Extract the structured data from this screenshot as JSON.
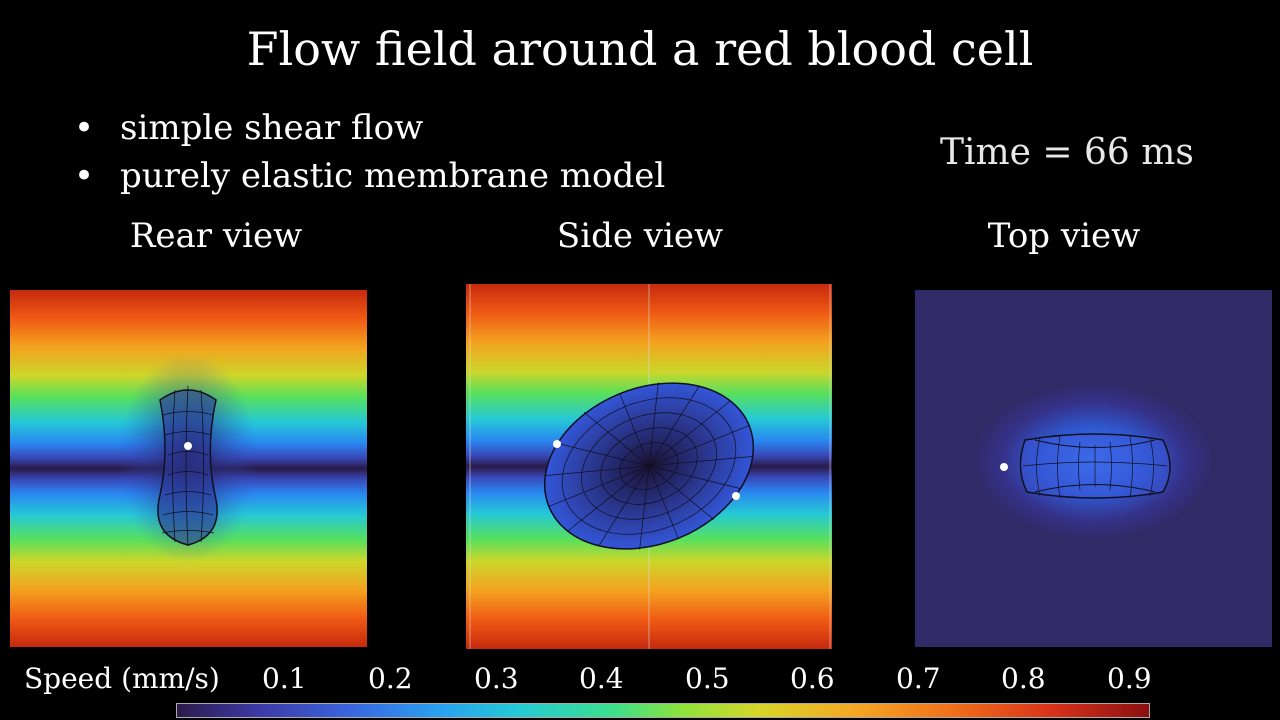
{
  "title": "Flow field around a red blood cell",
  "bullets": [
    "simple shear flow",
    "purely elastic membrane model"
  ],
  "time_label": "Time = 66 ms",
  "views": {
    "rear": "Rear view",
    "side": "Side view",
    "top": "Top view"
  },
  "colorbar": {
    "label": "Speed (mm/s)",
    "ticks": [
      "0.1",
      "0.2",
      "0.3",
      "0.4",
      "0.5",
      "0.6",
      "0.7",
      "0.8",
      "0.9"
    ]
  }
}
